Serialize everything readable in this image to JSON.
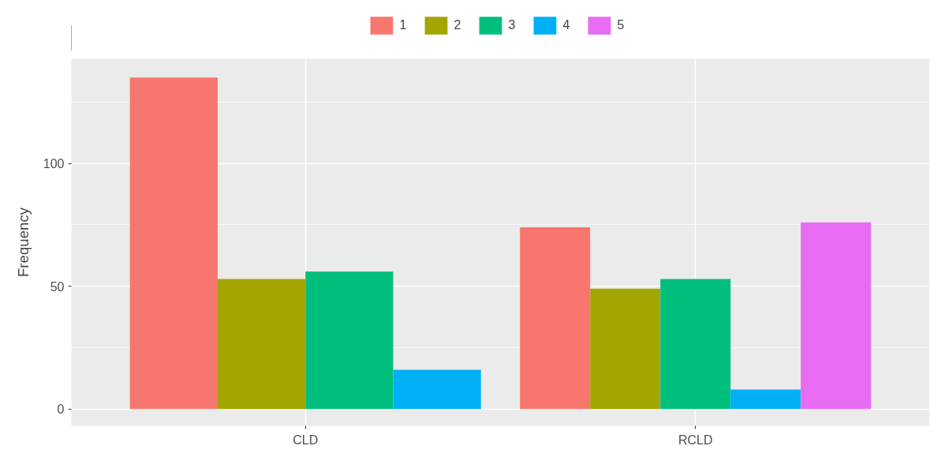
{
  "chart_data": {
    "type": "bar",
    "ylabel": "Frequency",
    "categories": [
      "CLD",
      "RCLD"
    ],
    "series": [
      {
        "name": "1",
        "color": "#f8766d",
        "values": [
          135,
          74
        ]
      },
      {
        "name": "2",
        "color": "#a3a500",
        "values": [
          53,
          49
        ]
      },
      {
        "name": "3",
        "color": "#00bf7d",
        "values": [
          56,
          53
        ]
      },
      {
        "name": "4",
        "color": "#00b0f6",
        "values": [
          16,
          8
        ]
      },
      {
        "name": "5",
        "color": "#e76bf3",
        "values": [
          null,
          76
        ]
      }
    ],
    "ylim": [
      -6.8,
      142.6
    ],
    "yticks": [
      0,
      {
        "value": 25,
        "label": null
      },
      50,
      {
        "value": 75,
        "label": null
      },
      100,
      {
        "value": 125,
        "label": null
      }
    ],
    "grid": true,
    "legend": "top"
  }
}
